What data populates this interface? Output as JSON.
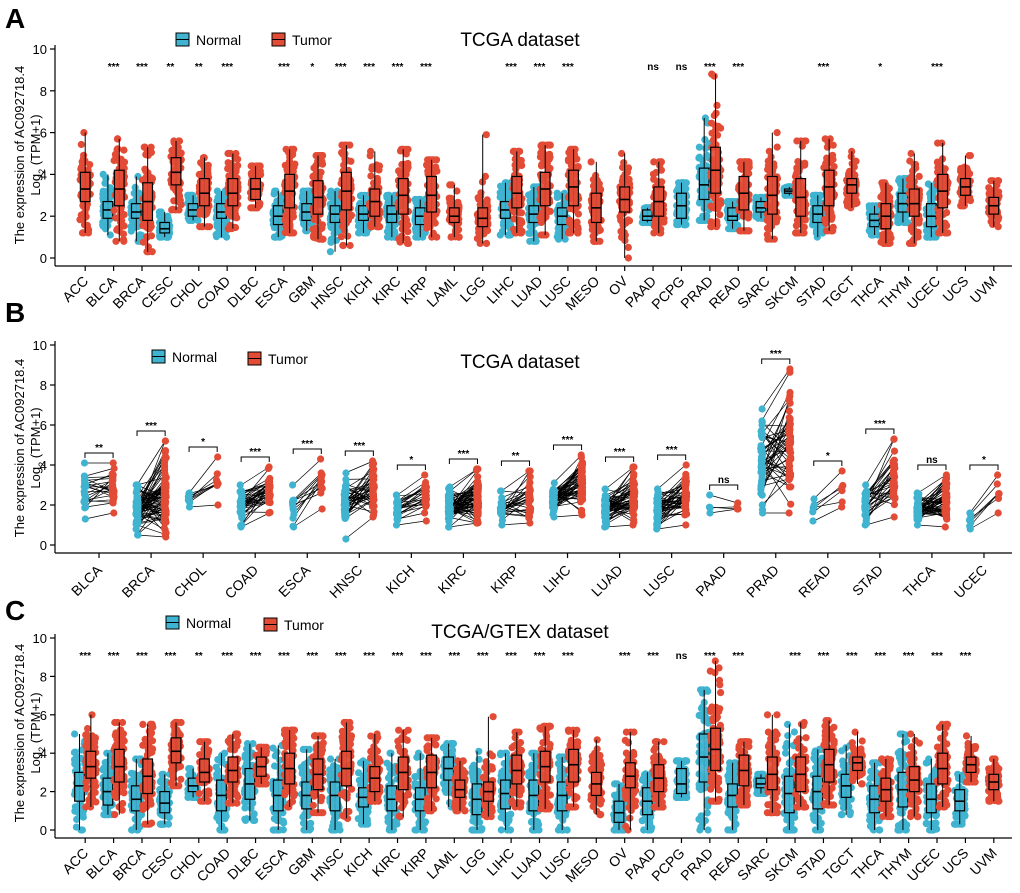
{
  "colors": {
    "normal": "#3fb3cf",
    "tumor": "#e24b35",
    "axis": "#000000"
  },
  "chart_data": [
    {
      "panel": "A",
      "type": "box",
      "title": "TCGA dataset",
      "ylabel_line1": "The expression of AC092718.4",
      "ylabel_line2_base": "Log",
      "ylabel_line2_sub": "2",
      "ylabel_line2_rest": " (TPM+1)",
      "legend": [
        "Normal",
        "Tumor"
      ],
      "ylim": [
        0,
        10
      ],
      "yticks": [
        "0",
        "2",
        "4",
        "6",
        "8",
        "10"
      ],
      "categories": [
        "ACC",
        "BLCA",
        "BRCA",
        "CESC",
        "CHOL",
        "COAD",
        "DLBC",
        "ESCA",
        "GBM",
        "HNSC",
        "KICH",
        "KIRC",
        "KIRP",
        "LAML",
        "LGG",
        "LIHC",
        "LUAD",
        "LUSC",
        "MESO",
        "OV",
        "PAAD",
        "PCPG",
        "PRAD",
        "READ",
        "SARC",
        "SKCM",
        "STAD",
        "TGCT",
        "THCA",
        "THYM",
        "UCEC",
        "UCS",
        "UVM"
      ],
      "significance": [
        "",
        "***",
        "***",
        "**",
        "**",
        "***",
        "",
        "***",
        "*",
        "***",
        "***",
        "***",
        "***",
        "",
        "",
        "***",
        "***",
        "***",
        "",
        "",
        "ns",
        "ns",
        "***",
        "***",
        "",
        "",
        "***",
        "",
        "*",
        "",
        "***",
        "",
        ""
      ],
      "normal": [
        null,
        [
          1.9,
          2.3,
          2.7,
          1.1,
          4.0
        ],
        [
          1.9,
          2.2,
          2.6,
          0.8,
          3.9
        ],
        [
          1.2,
          1.4,
          1.7,
          1.0,
          2.2
        ],
        [
          2.0,
          2.3,
          2.6,
          1.8,
          3.0
        ],
        [
          1.9,
          2.2,
          2.6,
          1.0,
          3.2
        ],
        null,
        [
          1.6,
          2.0,
          2.5,
          1.0,
          3.2
        ],
        [
          1.8,
          2.2,
          2.6,
          1.3,
          3.2
        ],
        [
          1.7,
          2.1,
          2.5,
          0.3,
          3.2
        ],
        [
          1.8,
          2.1,
          2.5,
          1.2,
          3.0
        ],
        [
          1.7,
          2.1,
          2.5,
          1.0,
          3.0
        ],
        [
          1.6,
          2.0,
          2.4,
          1.0,
          2.8
        ],
        null,
        null,
        [
          1.9,
          2.3,
          2.7,
          1.1,
          3.6
        ],
        [
          1.7,
          2.1,
          2.5,
          0.8,
          3.4
        ],
        [
          1.6,
          2.0,
          2.4,
          0.9,
          3.1
        ],
        null,
        null,
        [
          1.8,
          2.0,
          2.3,
          1.7,
          2.4
        ],
        [
          1.9,
          2.5,
          3.1,
          1.6,
          3.6
        ],
        [
          2.8,
          3.5,
          4.3,
          1.8,
          6.7
        ],
        [
          1.8,
          2.0,
          2.4,
          1.4,
          2.7
        ],
        [
          2.2,
          2.4,
          2.7,
          1.9,
          2.9
        ],
        [
          3.1,
          3.2,
          3.3,
          3.0,
          3.4
        ],
        [
          1.7,
          2.1,
          2.5,
          1.0,
          3.0
        ],
        null,
        [
          1.5,
          1.8,
          2.1,
          1.1,
          2.5
        ],
        [
          2.2,
          2.6,
          3.1,
          1.7,
          3.8
        ],
        [
          1.5,
          2.0,
          2.6,
          1.0,
          3.6
        ],
        null,
        null
      ],
      "tumor": [
        [
          2.7,
          3.3,
          4.1,
          1.2,
          6.0
        ],
        [
          2.5,
          3.3,
          4.2,
          0.8,
          5.7
        ],
        [
          1.8,
          2.7,
          3.6,
          0.3,
          5.3
        ],
        [
          3.5,
          4.1,
          4.8,
          2.3,
          5.6
        ],
        [
          2.5,
          3.1,
          3.8,
          1.5,
          4.8
        ],
        [
          2.5,
          3.1,
          3.8,
          1.4,
          5.0
        ],
        [
          2.8,
          3.3,
          3.8,
          2.4,
          4.4
        ],
        [
          2.4,
          3.2,
          4.0,
          1.2,
          5.2
        ],
        [
          2.1,
          2.9,
          3.7,
          0.9,
          4.9
        ],
        [
          2.3,
          3.2,
          4.1,
          0.6,
          5.4
        ],
        [
          2.0,
          2.7,
          3.3,
          1.5,
          5.1
        ],
        [
          2.1,
          3.0,
          3.8,
          0.7,
          5.2
        ],
        [
          2.2,
          3.0,
          3.9,
          1.0,
          4.7
        ],
        [
          1.7,
          2.0,
          2.4,
          1.0,
          3.5
        ],
        [
          1.5,
          1.9,
          2.4,
          0.7,
          5.9
        ],
        [
          2.4,
          3.1,
          3.9,
          1.2,
          5.1
        ],
        [
          2.5,
          3.3,
          4.1,
          1.1,
          5.4
        ],
        [
          2.5,
          3.4,
          4.2,
          1.2,
          5.2
        ],
        [
          1.7,
          2.4,
          3.1,
          0.8,
          4.6
        ],
        [
          2.2,
          2.8,
          3.4,
          0.0,
          5.0
        ],
        [
          2.0,
          2.7,
          3.4,
          1.2,
          4.6
        ],
        null,
        [
          3.1,
          4.2,
          5.3,
          1.5,
          8.8
        ],
        [
          2.3,
          3.1,
          3.9,
          1.3,
          4.6
        ],
        [
          2.1,
          3.0,
          3.9,
          0.9,
          6.0
        ],
        [
          2.0,
          2.9,
          3.8,
          1.2,
          5.6
        ],
        [
          2.5,
          3.4,
          4.2,
          1.3,
          5.7
        ],
        [
          3.1,
          3.5,
          3.8,
          2.4,
          5.1
        ],
        [
          1.4,
          2.0,
          2.6,
          0.7,
          3.6
        ],
        [
          2.0,
          2.6,
          3.3,
          0.7,
          5.0
        ],
        [
          2.4,
          3.2,
          4.0,
          1.2,
          5.5
        ],
        [
          3.0,
          3.4,
          3.8,
          2.5,
          4.9
        ],
        [
          2.1,
          2.5,
          2.9,
          1.5,
          3.7
        ]
      ]
    },
    {
      "panel": "B",
      "type": "paired",
      "title": "TCGA dataset",
      "ylabel_line1": "The expression of AC092718.4",
      "ylabel_line2_base": "Log",
      "ylabel_line2_sub": "2",
      "ylabel_line2_rest": " (TPM+1)",
      "legend": [
        "Normal",
        "Tumor"
      ],
      "ylim": [
        0,
        10
      ],
      "yticks": [
        "0",
        "2",
        "4",
        "6",
        "8",
        "10"
      ],
      "categories": [
        "BLCA",
        "BRCA",
        "CHOL",
        "COAD",
        "ESCA",
        "HNSC",
        "KICH",
        "KIRC",
        "KIRP",
        "LIHC",
        "LUAD",
        "LUSC",
        "PAAD",
        "PRAD",
        "READ",
        "STAD",
        "THCA",
        "UCEC"
      ],
      "significance": [
        "**",
        "***",
        "*",
        "***",
        "***",
        "***",
        "*",
        "***",
        "**",
        "***",
        "***",
        "***",
        "ns",
        "***",
        "*",
        "***",
        "ns",
        "*"
      ],
      "normal_range": [
        [
          1.3,
          4.1
        ],
        [
          0.5,
          3.0
        ],
        [
          1.9,
          2.6
        ],
        [
          0.9,
          3.0
        ],
        [
          0.9,
          3.0
        ],
        [
          0.3,
          3.6
        ],
        [
          1.0,
          2.5
        ],
        [
          0.9,
          2.9
        ],
        [
          1.0,
          2.7
        ],
        [
          1.4,
          3.1
        ],
        [
          0.9,
          2.8
        ],
        [
          0.8,
          2.8
        ],
        [
          1.6,
          2.5
        ],
        [
          1.6,
          6.8
        ],
        [
          1.2,
          2.3
        ],
        [
          1.0,
          3.0
        ],
        [
          1.0,
          2.6
        ],
        [
          0.8,
          1.6
        ]
      ],
      "tumor_range": [
        [
          1.6,
          4.1
        ],
        [
          0.4,
          5.2
        ],
        [
          2.0,
          4.4
        ],
        [
          1.6,
          3.9
        ],
        [
          1.8,
          4.3
        ],
        [
          1.4,
          4.2
        ],
        [
          1.2,
          3.5
        ],
        [
          1.1,
          3.8
        ],
        [
          1.1,
          3.7
        ],
        [
          1.5,
          4.5
        ],
        [
          1.0,
          3.9
        ],
        [
          1.0,
          4.0
        ],
        [
          1.8,
          2.1
        ],
        [
          1.6,
          8.8
        ],
        [
          1.9,
          3.7
        ],
        [
          1.4,
          5.3
        ],
        [
          0.9,
          3.5
        ],
        [
          1.6,
          3.5
        ]
      ],
      "pairs": [
        24,
        80,
        9,
        40,
        12,
        40,
        24,
        70,
        30,
        50,
        58,
        48,
        4,
        52,
        6,
        32,
        56,
        7
      ]
    },
    {
      "panel": "C",
      "type": "box",
      "title": "TCGA/GTEX dataset",
      "ylabel_line1": "The expression of AC092718.4",
      "ylabel_line2_base": "Log",
      "ylabel_line2_sub": "2",
      "ylabel_line2_rest": " (TPM+1)",
      "legend": [
        "Normal",
        "Tumor"
      ],
      "ylim": [
        0,
        10
      ],
      "yticks": [
        "0",
        "2",
        "4",
        "6",
        "8",
        "10"
      ],
      "categories": [
        "ACC",
        "BLCA",
        "BRCA",
        "CESC",
        "CHOL",
        "COAD",
        "DLBC",
        "ESCA",
        "GBM",
        "HNSC",
        "KICH",
        "KIRC",
        "KIRP",
        "LAML",
        "LGG",
        "LIHC",
        "LUAD",
        "LUSC",
        "MESO",
        "OV",
        "PAAD",
        "PCPG",
        "PRAD",
        "READ",
        "SARC",
        "SKCM",
        "STAD",
        "TGCT",
        "THCA",
        "THYM",
        "UCEC",
        "UCS",
        "UVM"
      ],
      "significance": [
        "***",
        "***",
        "***",
        "***",
        "**",
        "***",
        "***",
        "***",
        "***",
        "***",
        "***",
        "***",
        "***",
        "***",
        "***",
        "***",
        "***",
        "***",
        "",
        "***",
        "***",
        "ns",
        "***",
        "***",
        "",
        "***",
        "***",
        "***",
        "***",
        "***",
        "***",
        "***",
        ""
      ],
      "normal": [
        [
          1.5,
          2.3,
          3.0,
          0.0,
          5.0
        ],
        [
          1.3,
          2.0,
          2.7,
          0.8,
          4.0
        ],
        [
          1.0,
          1.6,
          2.3,
          0.0,
          3.7
        ],
        [
          0.9,
          1.4,
          2.0,
          0.3,
          2.9
        ],
        [
          2.0,
          2.3,
          2.7,
          1.7,
          3.2
        ],
        [
          1.0,
          1.8,
          2.6,
          0.0,
          4.0
        ],
        [
          1.6,
          2.4,
          3.2,
          0.5,
          4.5
        ],
        [
          1.0,
          1.8,
          2.6,
          0.0,
          4.4
        ],
        [
          1.1,
          1.8,
          2.5,
          0.0,
          4.2
        ],
        [
          1.0,
          1.8,
          2.5,
          0.0,
          3.7
        ],
        [
          1.2,
          1.7,
          2.2,
          0.3,
          3.6
        ],
        [
          1.0,
          1.6,
          2.3,
          0.0,
          4.0
        ],
        [
          1.0,
          1.6,
          2.2,
          0.0,
          4.0
        ],
        [
          2.6,
          3.2,
          3.8,
          1.2,
          4.5
        ],
        [
          0.8,
          1.6,
          2.4,
          0.0,
          4.1
        ],
        [
          1.1,
          1.9,
          2.6,
          0.0,
          4.0
        ],
        [
          1.0,
          1.8,
          2.6,
          0.0,
          4.0
        ],
        [
          1.0,
          1.8,
          2.5,
          0.0,
          3.8
        ],
        null,
        [
          0.4,
          0.9,
          1.5,
          0.0,
          2.4
        ],
        [
          0.8,
          1.5,
          2.2,
          0.0,
          3.0
        ],
        [
          1.9,
          2.4,
          3.2,
          1.7,
          3.6
        ],
        [
          2.5,
          3.8,
          5.0,
          0.0,
          7.3
        ],
        [
          1.2,
          1.8,
          2.4,
          0.0,
          3.5
        ],
        [
          2.2,
          2.4,
          2.7,
          1.9,
          2.9
        ],
        [
          0.9,
          1.9,
          2.8,
          0.0,
          5.5
        ],
        [
          1.1,
          2.0,
          2.8,
          0.0,
          4.2
        ],
        [
          1.7,
          2.3,
          2.9,
          0.8,
          4.4
        ],
        [
          0.9,
          1.6,
          2.3,
          0.0,
          3.5
        ],
        [
          1.2,
          2.1,
          3.0,
          0.0,
          5.0
        ],
        [
          0.9,
          1.6,
          2.4,
          0.0,
          3.7
        ],
        [
          1.0,
          1.5,
          2.1,
          0.3,
          2.9
        ],
        null
      ],
      "tumor": [
        [
          2.7,
          3.3,
          4.1,
          1.2,
          6.0
        ],
        [
          2.5,
          3.3,
          4.2,
          0.8,
          5.6
        ],
        [
          1.9,
          2.8,
          3.7,
          0.3,
          5.5
        ],
        [
          3.5,
          4.1,
          4.8,
          2.3,
          5.6
        ],
        [
          2.5,
          3.0,
          3.7,
          1.5,
          4.6
        ],
        [
          2.5,
          3.1,
          3.8,
          1.4,
          5.0
        ],
        [
          2.8,
          3.3,
          3.8,
          2.4,
          4.3
        ],
        [
          2.4,
          3.2,
          4.0,
          1.2,
          5.2
        ],
        [
          2.1,
          2.9,
          3.7,
          0.9,
          4.9
        ],
        [
          2.3,
          3.2,
          4.1,
          0.6,
          5.6
        ],
        [
          2.0,
          2.7,
          3.3,
          1.5,
          5.0
        ],
        [
          2.1,
          3.0,
          3.8,
          0.7,
          5.2
        ],
        [
          2.2,
          3.0,
          3.9,
          1.0,
          4.8
        ],
        [
          1.7,
          2.1,
          2.6,
          1.0,
          3.6
        ],
        [
          1.5,
          2.0,
          2.5,
          0.7,
          5.9
        ],
        [
          2.4,
          3.1,
          3.9,
          1.2,
          5.1
        ],
        [
          2.5,
          3.3,
          4.1,
          1.1,
          5.4
        ],
        [
          2.5,
          3.4,
          4.2,
          1.2,
          5.2
        ],
        [
          1.8,
          2.4,
          3.0,
          0.8,
          4.7
        ],
        [
          2.2,
          2.8,
          3.5,
          0.0,
          5.1
        ],
        [
          2.0,
          2.7,
          3.4,
          1.2,
          4.6
        ],
        null,
        [
          3.1,
          4.2,
          5.3,
          1.5,
          8.8
        ],
        [
          2.3,
          3.1,
          3.9,
          1.3,
          4.6
        ],
        [
          2.1,
          2.9,
          3.8,
          0.9,
          6.0
        ],
        [
          2.0,
          2.9,
          3.8,
          1.2,
          5.6
        ],
        [
          2.5,
          3.4,
          4.2,
          1.3,
          5.7
        ],
        [
          3.1,
          3.5,
          3.8,
          2.4,
          5.1
        ],
        [
          1.5,
          2.1,
          2.7,
          0.7,
          3.7
        ],
        [
          2.0,
          2.6,
          3.3,
          0.7,
          5.0
        ],
        [
          2.4,
          3.2,
          4.0,
          1.2,
          5.5
        ],
        [
          3.0,
          3.4,
          3.8,
          2.5,
          4.9
        ],
        [
          2.1,
          2.5,
          2.9,
          1.5,
          3.7
        ]
      ]
    }
  ]
}
